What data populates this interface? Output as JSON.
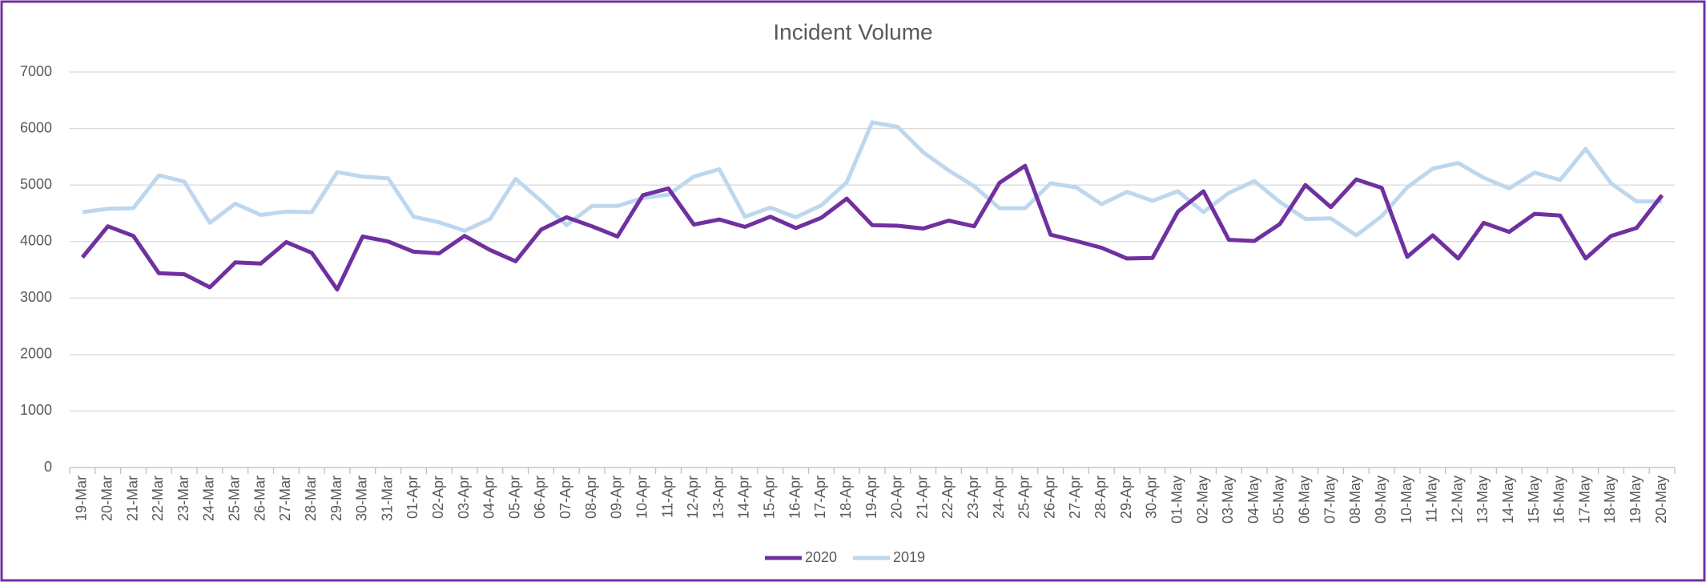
{
  "chart_data": {
    "type": "line",
    "title": "Incident Volume",
    "categories": [
      "19-Mar",
      "20-Mar",
      "21-Mar",
      "22-Mar",
      "23-Mar",
      "24-Mar",
      "25-Mar",
      "26-Mar",
      "27-Mar",
      "28-Mar",
      "29-Mar",
      "30-Mar",
      "31-Mar",
      "01-Apr",
      "02-Apr",
      "03-Apr",
      "04-Apr",
      "05-Apr",
      "06-Apr",
      "07-Apr",
      "08-Apr",
      "09-Apr",
      "10-Apr",
      "11-Apr",
      "12-Apr",
      "13-Apr",
      "14-Apr",
      "15-Apr",
      "16-Apr",
      "17-Apr",
      "18-Apr",
      "19-Apr",
      "20-Apr",
      "21-Apr",
      "22-Apr",
      "23-Apr",
      "24-Apr",
      "25-Apr",
      "26-Apr",
      "27-Apr",
      "28-Apr",
      "29-Apr",
      "30-Apr",
      "01-May",
      "02-May",
      "03-May",
      "04-May",
      "05-May",
      "06-May",
      "07-May",
      "08-May",
      "09-May",
      "10-May",
      "11-May",
      "12-May",
      "13-May",
      "14-May",
      "15-May",
      "16-May",
      "17-May",
      "18-May",
      "19-May",
      "20-May"
    ],
    "series": [
      {
        "name": "2020",
        "color": "#7030a0",
        "values": [
          3720,
          4270,
          4100,
          3440,
          3420,
          3190,
          3630,
          3610,
          3990,
          3800,
          3150,
          4090,
          4000,
          3820,
          3790,
          4100,
          3850,
          3650,
          4210,
          4430,
          4270,
          4090,
          4820,
          4940,
          4300,
          4390,
          4260,
          4440,
          4240,
          4420,
          4760,
          4290,
          4280,
          4230,
          4370,
          4270,
          5040,
          5340,
          4120,
          4010,
          3890,
          3700,
          3710,
          4530,
          4890,
          4030,
          4010,
          4310,
          5000,
          4610,
          5100,
          4950,
          3730,
          4110,
          3700,
          4330,
          4170,
          4490,
          4460,
          3700,
          4100,
          4240,
          4820
        ]
      },
      {
        "name": "2019",
        "color": "#bdd7ee",
        "values": [
          4520,
          4580,
          4590,
          5170,
          5060,
          4330,
          4670,
          4470,
          4530,
          4520,
          5230,
          5150,
          5120,
          4440,
          4340,
          4190,
          4400,
          5110,
          4720,
          4290,
          4630,
          4630,
          4770,
          4830,
          5150,
          5280,
          4440,
          4600,
          4430,
          4640,
          5050,
          6110,
          6030,
          5580,
          5260,
          4980,
          4590,
          4590,
          5030,
          4960,
          4660,
          4880,
          4720,
          4890,
          4520,
          4860,
          5070,
          4700,
          4400,
          4410,
          4110,
          4450,
          4960,
          5290,
          5390,
          5130,
          4940,
          5220,
          5090,
          5640,
          5030,
          4710,
          4710
        ]
      }
    ],
    "ylim": [
      0,
      7000
    ],
    "yticks": [
      0,
      1000,
      2000,
      3000,
      4000,
      5000,
      6000,
      7000
    ],
    "grid": true,
    "legend": "bottom"
  }
}
